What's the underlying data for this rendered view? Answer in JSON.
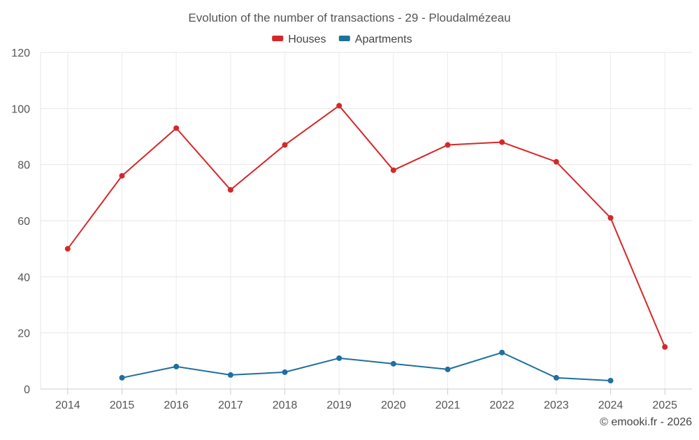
{
  "chart_data": {
    "type": "line",
    "title": "Evolution of the number of transactions - 29 - Ploudalmézeau",
    "xlabel": "",
    "ylabel": "",
    "categories": [
      "2014",
      "2015",
      "2016",
      "2017",
      "2018",
      "2019",
      "2020",
      "2021",
      "2022",
      "2023",
      "2024",
      "2025"
    ],
    "ylim": [
      0,
      120
    ],
    "yticks": [
      0,
      20,
      40,
      60,
      80,
      100,
      120
    ],
    "grid": true,
    "legend_position": "top-center",
    "series": [
      {
        "name": "Houses",
        "color": "#d62728",
        "values": [
          50,
          76,
          93,
          71,
          87,
          101,
          78,
          87,
          88,
          81,
          61,
          15
        ]
      },
      {
        "name": "Apartments",
        "color": "#1f6f9f",
        "values": [
          null,
          4,
          8,
          5,
          6,
          11,
          9,
          7,
          13,
          4,
          3,
          null
        ]
      }
    ],
    "credit": "© emooki.fr - 2026"
  }
}
